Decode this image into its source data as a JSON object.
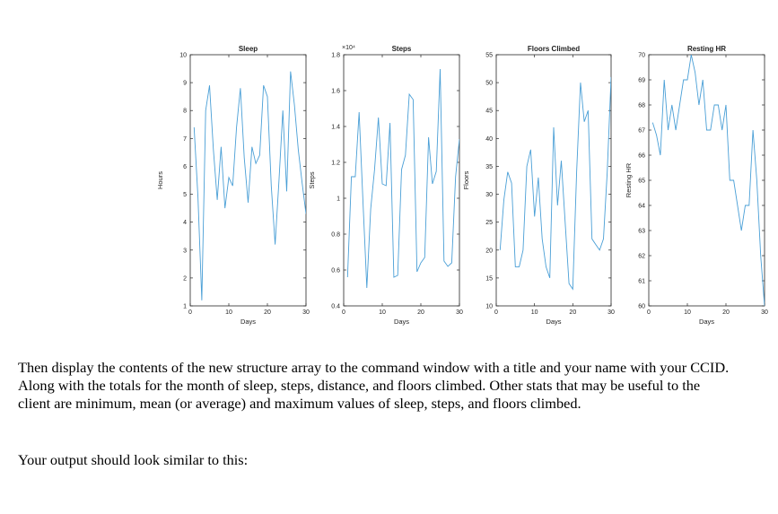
{
  "chart_data": [
    {
      "type": "line",
      "title": "Sleep",
      "xlabel": "Days",
      "ylabel": "Hours",
      "xlim": [
        0,
        30
      ],
      "ylim": [
        1,
        10
      ],
      "xticks": [
        0,
        10,
        20,
        30
      ],
      "yticks": [
        1,
        2,
        3,
        4,
        5,
        6,
        7,
        8,
        9,
        10
      ],
      "exponent_label": "",
      "color": "#4a9fd6",
      "grid": false,
      "x": [
        1,
        2,
        3,
        4,
        5,
        6,
        7,
        8,
        9,
        10,
        11,
        12,
        13,
        14,
        15,
        16,
        17,
        18,
        19,
        20,
        21,
        22,
        23,
        24,
        25,
        26,
        27,
        28,
        29,
        30,
        31
      ],
      "values": [
        7.4,
        4.9,
        1.2,
        8.0,
        8.9,
        6.6,
        4.8,
        6.7,
        4.5,
        5.6,
        5.3,
        7.4,
        8.8,
        6.3,
        4.7,
        6.7,
        6.1,
        6.4,
        8.9,
        8.5,
        5.3,
        3.2,
        5.5,
        8.0,
        5.1,
        9.4,
        8.2,
        6.6,
        5.4,
        4.3,
        5.9
      ]
    },
    {
      "type": "line",
      "title": "Steps",
      "xlabel": "Days",
      "ylabel": "Steps",
      "xlim": [
        0,
        30
      ],
      "ylim": [
        0.4,
        1.8
      ],
      "xticks": [
        0,
        10,
        20,
        30
      ],
      "yticks": [
        0.4,
        0.6,
        0.8,
        1,
        1.2,
        1.4,
        1.6,
        1.8
      ],
      "exponent_label": "×10⁴",
      "color": "#4a9fd6",
      "grid": false,
      "x": [
        1,
        2,
        3,
        4,
        5,
        6,
        7,
        8,
        9,
        10,
        11,
        12,
        13,
        14,
        15,
        16,
        17,
        18,
        19,
        20,
        21,
        22,
        23,
        24,
        25,
        26,
        27,
        28,
        29,
        30,
        31
      ],
      "values": [
        0.56,
        1.12,
        1.12,
        1.48,
        0.98,
        0.5,
        0.94,
        1.16,
        1.45,
        1.08,
        1.07,
        1.42,
        0.56,
        0.57,
        1.16,
        1.24,
        1.58,
        1.55,
        0.59,
        0.64,
        0.67,
        1.34,
        1.08,
        1.15,
        1.72,
        0.65,
        0.62,
        0.64,
        1.12,
        1.33,
        1.19
      ]
    },
    {
      "type": "line",
      "title": "Floors Climbed",
      "xlabel": "Days",
      "ylabel": "Floors",
      "xlim": [
        0,
        30
      ],
      "ylim": [
        10,
        55
      ],
      "xticks": [
        0,
        10,
        20,
        30
      ],
      "yticks": [
        10,
        15,
        20,
        25,
        30,
        35,
        40,
        45,
        50,
        55
      ],
      "exponent_label": "",
      "color": "#4a9fd6",
      "grid": false,
      "x": [
        1,
        2,
        3,
        4,
        5,
        6,
        7,
        8,
        9,
        10,
        11,
        12,
        13,
        14,
        15,
        16,
        17,
        18,
        19,
        20,
        21,
        22,
        23,
        24,
        25,
        26,
        27,
        28,
        29,
        30,
        31
      ],
      "values": [
        20,
        29,
        34,
        32,
        17,
        17,
        20,
        35,
        38,
        26,
        33,
        22,
        17,
        15,
        42,
        28,
        36,
        25,
        14,
        13,
        34,
        50,
        43,
        45,
        22,
        21,
        20,
        22,
        34,
        51,
        35
      ]
    },
    {
      "type": "line",
      "title": "Resting HR",
      "xlabel": "Days",
      "ylabel": "Resting HR",
      "xlim": [
        0,
        30
      ],
      "ylim": [
        60,
        70
      ],
      "xticks": [
        0,
        10,
        20,
        30
      ],
      "yticks": [
        60,
        61,
        62,
        63,
        64,
        65,
        66,
        67,
        68,
        69,
        70
      ],
      "exponent_label": "",
      "color": "#4a9fd6",
      "grid": false,
      "x": [
        1,
        2,
        3,
        4,
        5,
        6,
        7,
        8,
        9,
        10,
        11,
        12,
        13,
        14,
        15,
        16,
        17,
        18,
        19,
        20,
        21,
        22,
        23,
        24,
        25,
        26,
        27,
        28,
        29,
        30,
        31
      ],
      "values": [
        67.3,
        66.8,
        66.0,
        69.0,
        67.0,
        68.0,
        67.0,
        68.0,
        69.0,
        69.0,
        70.0,
        69.3,
        68.0,
        69.0,
        67.0,
        67.0,
        68.0,
        68.0,
        67.0,
        68.0,
        65.0,
        65.0,
        64.0,
        63.0,
        64.0,
        64.0,
        67.0,
        65.0,
        62.0,
        60.0,
        62.0
      ]
    }
  ],
  "text": {
    "paragraph1": "Then display the contents of the new structure array to the command window with a title and your name with your CCID. Along with the totals for the month of sleep, steps, distance, and floors climbed. Other stats that may be useful to the client are minimum, mean (or average) and maximum values of sleep, steps, and floors climbed.",
    "paragraph2": "Your output should look similar to this:"
  }
}
